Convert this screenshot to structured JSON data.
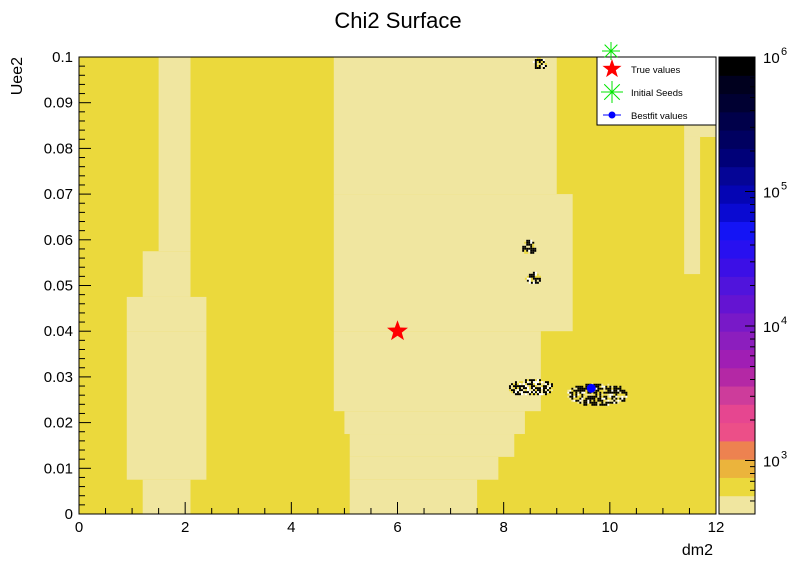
{
  "chart_data": {
    "type": "heatmap",
    "title": "Chi2 Surface",
    "xlabel": "dm2",
    "ylabel": "Uee2",
    "xlim": [
      0,
      12
    ],
    "ylim": [
      0,
      0.1
    ],
    "x_ticks": [
      "0",
      "2",
      "4",
      "6",
      "8",
      "10",
      "12"
    ],
    "y_ticks": [
      "0",
      "0.01",
      "0.02",
      "0.03",
      "0.04",
      "0.05",
      "0.06",
      "0.07",
      "0.08",
      "0.09",
      "0.1"
    ],
    "z_scale": "log",
    "z_ticks": [
      {
        "base": "10",
        "exp": "3",
        "value": 1000
      },
      {
        "base": "10",
        "exp": "4",
        "value": 10000
      },
      {
        "base": "10",
        "exp": "5",
        "value": 100000
      },
      {
        "base": "10",
        "exp": "6",
        "value": 1000000
      }
    ],
    "z_range": [
      400,
      1000000
    ],
    "palette": [
      "#f0e6a0",
      "#ebd93c",
      "#ebb43c",
      "#ed8250",
      "#ec4f88",
      "#e64690",
      "#cd3c9b",
      "#b428a5",
      "#a01eb4",
      "#8c1ebe",
      "#7819c8",
      "#6414d2",
      "#5014dc",
      "#3c0fe6",
      "#2810f0",
      "#1414f5",
      "#0a0ad2",
      "#0505b4",
      "#050596",
      "#000078",
      "#000060",
      "#00004a",
      "#000032",
      "#00001e",
      "#000000"
    ],
    "regions": {
      "background_level": "#ebd93c",
      "low_level": "#f0e6a0",
      "central_valley_profile": [
        {
          "y": 0.0,
          "x_min": 5.1,
          "x_max": 7.5
        },
        {
          "y": 0.0075,
          "x_min": 5.1,
          "x_max": 7.9
        },
        {
          "y": 0.0125,
          "x_min": 5.1,
          "x_max": 8.2
        },
        {
          "y": 0.0175,
          "x_min": 5.0,
          "x_max": 8.4
        },
        {
          "y": 0.0225,
          "x_min": 4.8,
          "x_max": 8.7
        },
        {
          "y": 0.04,
          "x_min": 4.8,
          "x_max": 9.3
        },
        {
          "y": 0.07,
          "x_min": 4.8,
          "x_max": 9.0
        },
        {
          "y": 0.1,
          "x_min": 4.8,
          "x_max": 8.6
        }
      ],
      "left_valley_profile": [
        {
          "y": 0.0,
          "x_min": 1.2,
          "x_max": 2.1
        },
        {
          "y": 0.0075,
          "x_min": 0.9,
          "x_max": 2.4
        },
        {
          "y": 0.04,
          "x_min": 0.9,
          "x_max": 2.4
        },
        {
          "y": 0.0475,
          "x_min": 1.2,
          "x_max": 2.1
        },
        {
          "y": 0.0575,
          "x_min": 1.5,
          "x_max": 2.1
        }
      ],
      "right_strip_profile": [
        {
          "y": 0.0525,
          "x_min": 11.4,
          "x_max": 11.7
        },
        {
          "y": 0.0825,
          "x_min": 11.4,
          "x_max": 12.0
        }
      ],
      "noise_clusters": [
        {
          "x": [
            8.55,
            8.8
          ],
          "y": [
            0.0975,
            0.1
          ]
        },
        {
          "x": [
            8.35,
            8.6
          ],
          "y": [
            0.057,
            0.06
          ]
        },
        {
          "x": [
            8.4,
            8.7
          ],
          "y": [
            0.0505,
            0.053
          ]
        },
        {
          "x": [
            8.1,
            8.9
          ],
          "y": [
            0.026,
            0.0295
          ]
        },
        {
          "x": [
            9.2,
            10.3
          ],
          "y": [
            0.024,
            0.0285
          ]
        }
      ]
    },
    "markers": [
      {
        "label": "True values",
        "x": 6.0,
        "y": 0.04,
        "symbol": "star",
        "color": "#ff0000"
      },
      {
        "label": "Initial Seeds",
        "symbol": "asterisk",
        "color": "#00e600"
      },
      {
        "label": "Bestfit values",
        "x": 9.65,
        "y": 0.0275,
        "symbol": "circle",
        "color": "#0000ff"
      }
    ],
    "legend_position": "top-right",
    "grid": false
  }
}
